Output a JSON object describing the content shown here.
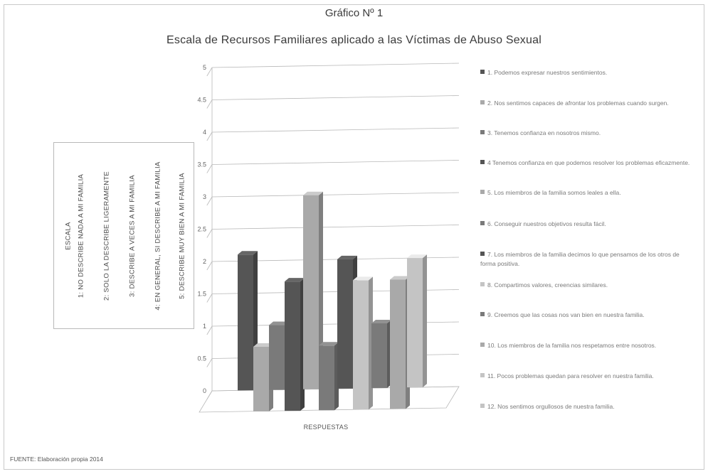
{
  "header": {
    "title": "Gráfico Nº 1",
    "subtitle": "Escala de Recursos Familiares aplicado a las Víctimas de Abuso Sexual"
  },
  "scale": {
    "heading": "ESCALA",
    "items": [
      "1: NO DESCRIBE NADA A MI FAMILIA",
      "2: SOLO LA DESCRIBE LIGERAMENTE",
      "3: DESCRIBE A VECES A MI FAMILIA",
      "4: EN GENERAL, SI DESCRIBE A MI FAMILIA",
      "5: DESCRIBE MUY BIEN A MI FAMILIA"
    ]
  },
  "footer": {
    "source": "FUENTE: Elaboración propia 2014"
  },
  "colors": {
    "dark": "#555555",
    "mid": "#7a7a7a",
    "light": "#a9a9a9",
    "lighter": "#c4c4c4",
    "axis": "#b8b8b8"
  },
  "chart_data": {
    "type": "bar",
    "title": "Escala de Recursos Familiares aplicado a las Víctimas de Abuso Sexual",
    "xlabel": "RESPUESTAS",
    "ylabel": "",
    "ylim": [
      0,
      5
    ],
    "yticks": [
      "0",
      "0.5",
      "1",
      "1.5",
      "2",
      "2.5",
      "3",
      "3.5",
      "4",
      "4.5",
      "5"
    ],
    "grid": true,
    "legend": "right",
    "categories": [
      "RESPUESTAS"
    ],
    "series": [
      {
        "name": "1. Podemos expresar nuestros sentimientos.",
        "values": [
          2.1
        ],
        "color": "dark"
      },
      {
        "name": "2. Nos sentimos capaces de afrontar los problemas cuando surgen.",
        "values": [
          1.0
        ],
        "color": "light"
      },
      {
        "name": "3. Tenemos confianza en nosotros mismo.",
        "values": [
          1.0
        ],
        "color": "mid"
      },
      {
        "name": "4. Tenemos confianza en que podemos resolver los problemas eficazmente.",
        "values": [
          2.0
        ],
        "color": "dark"
      },
      {
        "name": "5. Los miembros de la familia somos leales a ella.",
        "values": [
          3.0
        ],
        "color": "light"
      },
      {
        "name": "6. Conseguir nuestros objetivos resulta fácil.",
        "values": [
          1.0
        ],
        "color": "mid"
      },
      {
        "name": "7. Los miembros de la familia decimos lo que pensamos de los otros de forma positiva.",
        "values": [
          2.0
        ],
        "color": "dark"
      },
      {
        "name": "8. Compartimos valores, creencias similares.",
        "values": [
          2.0
        ],
        "color": "lighter"
      },
      {
        "name": "9. Creemos que las cosas nos van bien en nuestra familia.",
        "values": [
          1.0
        ],
        "color": "mid"
      },
      {
        "name": "10. Los miembros de la familia nos respetamos entre nosotros.",
        "values": [
          2.0
        ],
        "color": "light"
      },
      {
        "name": "11. Pocos problemas quedan para resolver en nuestra familia.",
        "values": [
          2.0
        ],
        "color": "lighter"
      },
      {
        "name": "12. Nos sentimos orgullosos de nuestra familia.",
        "values": [
          0
        ],
        "color": "lighter"
      }
    ],
    "legend_labels": [
      "1. Podemos expresar nuestros sentimientos.",
      "2. Nos sentimos capaces de afrontar los problemas cuando surgen.",
      "3. Tenemos confianza en nosotros mismo.",
      "4 Tenemos confianza en que podemos resolver los problemas eficazmente.",
      "5. Los miembros de la familia somos leales a ella.",
      "6. Conseguir nuestros objetivos resulta fácil.",
      "7. Los miembros de la familia decimos lo que pensamos de los otros de forma positiva.",
      "8. Compartimos valores, creencias similares.",
      "9. Creemos que las cosas nos van bien en nuestra familia.",
      "10. Los miembros de la familia nos respetamos entre nosotros.",
      "11. Pocos problemas quedan para resolver en nuestra familia.",
      "12. Nos sentimos orgullosos de nuestra familia."
    ]
  }
}
